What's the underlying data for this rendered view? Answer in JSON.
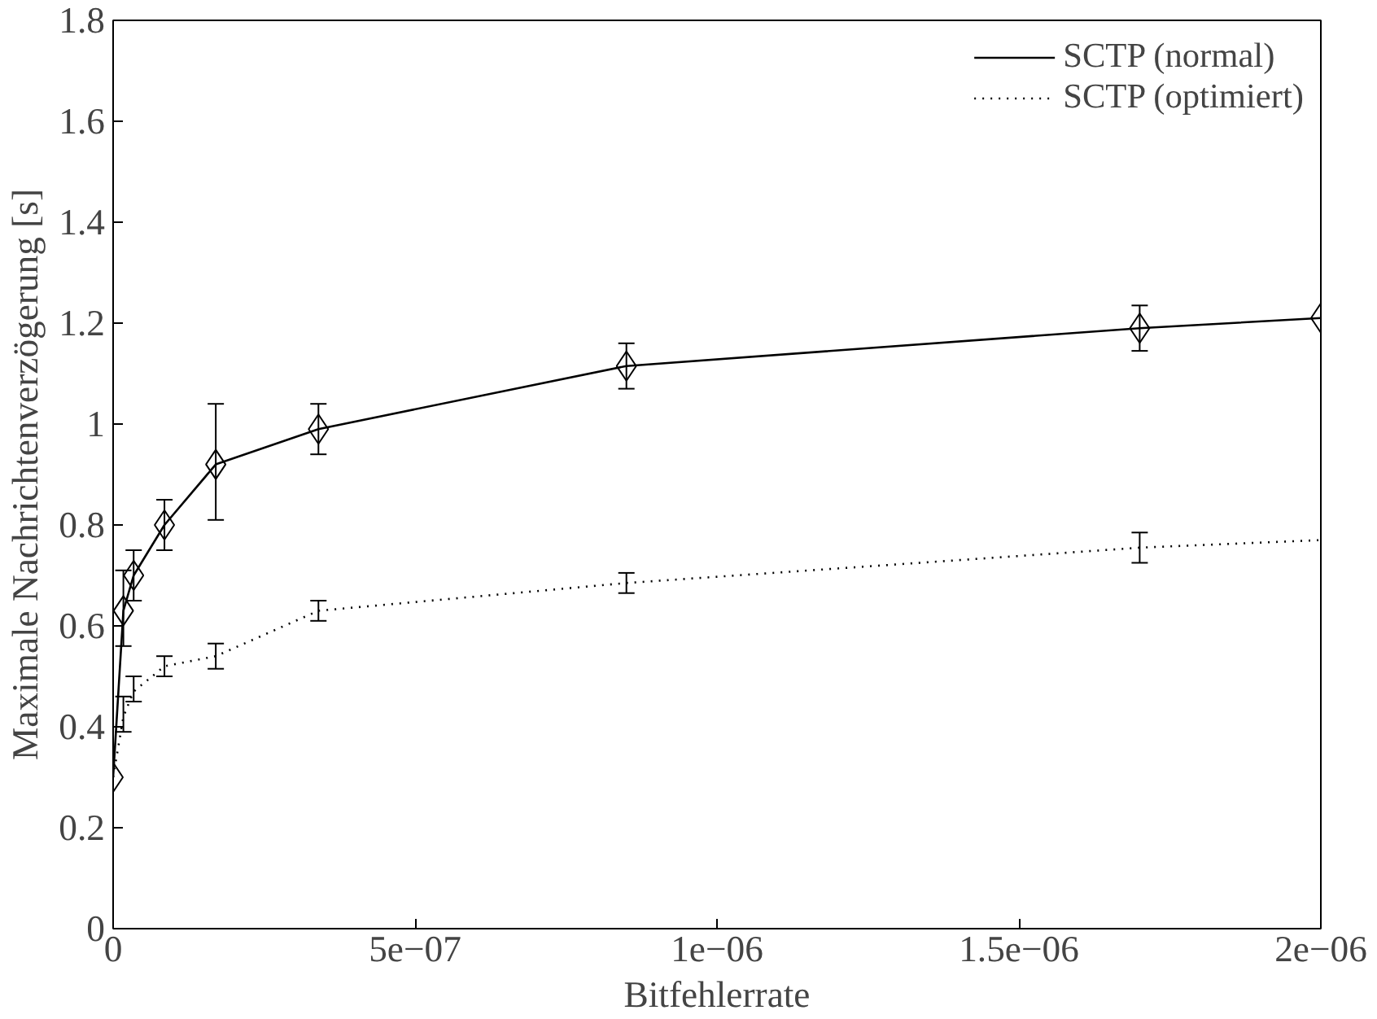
{
  "chart_data": {
    "type": "line",
    "xlabel": "Bitfehlerrate",
    "ylabel": "Maximale Nachrichtenverzögerung [s]",
    "xlim": [
      0,
      2e-06
    ],
    "ylim": [
      0,
      1.8
    ],
    "xticks": [
      0,
      {
        "value": 5e-07,
        "label": "5e−07"
      },
      {
        "value": 1e-06,
        "label": "1e−06"
      },
      {
        "value": 1.5e-06,
        "label": "1.5e−06"
      },
      {
        "value": 2e-06,
        "label": "2e−06"
      }
    ],
    "yticks": [
      0,
      0.2,
      0.4,
      0.6,
      0.8,
      1,
      1.2,
      1.4,
      1.6,
      1.8
    ],
    "grid": false,
    "legend": "top right",
    "series": [
      {
        "name": "SCTP (normal)",
        "color": "#000000",
        "line_style": "solid",
        "marker": "diamond",
        "x": [
          0,
          1.7e-08,
          3.4e-08,
          8.5e-08,
          1.7e-07,
          3.4e-07,
          8.5e-07,
          1.7e-06,
          2e-06
        ],
        "values": [
          0.3,
          0.63,
          0.7,
          0.8,
          0.92,
          0.99,
          1.115,
          1.19,
          1.21
        ],
        "errors": [
          null,
          [
            0.56,
            0.71
          ],
          [
            0.65,
            0.75
          ],
          [
            0.75,
            0.85
          ],
          [
            0.81,
            1.04
          ],
          [
            0.94,
            1.04
          ],
          [
            1.07,
            1.16
          ],
          [
            1.145,
            1.235
          ],
          null
        ]
      },
      {
        "name": "SCTP (optimiert)",
        "color": "#000000",
        "line_style": "dotted",
        "marker": "none",
        "x": [
          0,
          1.7e-08,
          3.4e-08,
          8.5e-08,
          1.7e-07,
          3.4e-07,
          8.5e-07,
          1.7e-06,
          2e-06
        ],
        "values": [
          0.3,
          0.42,
          0.47,
          0.52,
          0.54,
          0.63,
          0.685,
          0.755,
          0.77
        ],
        "errors": [
          null,
          [
            0.39,
            0.46
          ],
          [
            0.45,
            0.5
          ],
          [
            0.5,
            0.54
          ],
          [
            0.515,
            0.565
          ],
          [
            0.61,
            0.65
          ],
          [
            0.665,
            0.705
          ],
          [
            0.725,
            0.785
          ],
          null
        ]
      }
    ]
  }
}
